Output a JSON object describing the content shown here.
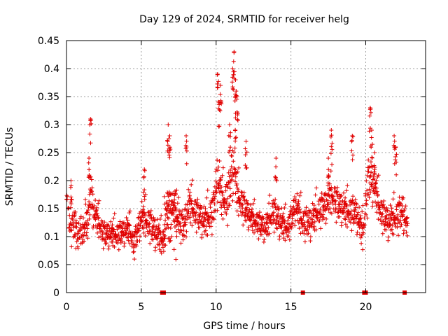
{
  "chart_data": {
    "type": "scatter",
    "title": "Day 129 of 2024, SRMTID for receiver helg",
    "xlabel": "GPS time / hours",
    "ylabel": "SRMTID / TECUs",
    "xlim": [
      0,
      24
    ],
    "ylim": [
      0,
      0.45
    ],
    "x_ticks": [
      0,
      5,
      10,
      15,
      20
    ],
    "x_tick_labels": [
      "0",
      "5",
      "10",
      "15",
      "20"
    ],
    "y_ticks": [
      0,
      0.05,
      0.1,
      0.15,
      0.2,
      0.25,
      0.3,
      0.35,
      0.4,
      0.45
    ],
    "y_tick_labels": [
      "0",
      "0.05",
      "0.1",
      "0.15",
      "0.2",
      "0.25",
      "0.3",
      "0.35",
      "0.4",
      "0.45"
    ],
    "grid": true,
    "marker": "plus",
    "series_color": "#e00000",
    "zero_markers_x": [
      6.4,
      6.5,
      15.8,
      19.9,
      20.0,
      22.6
    ],
    "profile_x": [
      0,
      0.3,
      0.8,
      1.2,
      1.5,
      1.6,
      1.8,
      2.5,
      3.5,
      4.2,
      4.5,
      5.0,
      5.5,
      6.0,
      6.5,
      6.8,
      7.2,
      7.8,
      8.2,
      8.6,
      9.2,
      9.8,
      10.1,
      10.4,
      10.8,
      11.0,
      11.2,
      11.4,
      11.8,
      12.3,
      12.8,
      13.3,
      13.8,
      14.3,
      14.8,
      15.3,
      15.8,
      16.3,
      16.8,
      17.3,
      17.7,
      18.2,
      18.8,
      19.3,
      19.8,
      20.1,
      20.3,
      20.6,
      21.0,
      21.5,
      22.0,
      22.5,
      22.8
    ],
    "profile_y": [
      0.15,
      0.13,
      0.1,
      0.11,
      0.13,
      0.18,
      0.14,
      0.1,
      0.1,
      0.11,
      0.08,
      0.13,
      0.12,
      0.1,
      0.09,
      0.15,
      0.14,
      0.11,
      0.15,
      0.14,
      0.12,
      0.14,
      0.2,
      0.16,
      0.16,
      0.2,
      0.22,
      0.17,
      0.15,
      0.13,
      0.12,
      0.11,
      0.14,
      0.12,
      0.11,
      0.15,
      0.12,
      0.12,
      0.14,
      0.15,
      0.17,
      0.15,
      0.14,
      0.14,
      0.1,
      0.18,
      0.2,
      0.18,
      0.14,
      0.12,
      0.13,
      0.14,
      0.11
    ],
    "profile_spread": [
      0.05,
      0.05,
      0.04,
      0.04,
      0.05,
      0.08,
      0.05,
      0.04,
      0.04,
      0.04,
      0.04,
      0.05,
      0.05,
      0.05,
      0.04,
      0.06,
      0.05,
      0.05,
      0.06,
      0.05,
      0.05,
      0.06,
      0.09,
      0.06,
      0.07,
      0.08,
      0.09,
      0.06,
      0.05,
      0.04,
      0.04,
      0.04,
      0.05,
      0.05,
      0.04,
      0.05,
      0.05,
      0.05,
      0.05,
      0.05,
      0.06,
      0.05,
      0.05,
      0.05,
      0.05,
      0.08,
      0.07,
      0.06,
      0.05,
      0.05,
      0.05,
      0.06,
      0.04
    ],
    "peaks": [
      {
        "x": 0.3,
        "y": 0.2
      },
      {
        "x": 1.5,
        "y": 0.24
      },
      {
        "x": 1.6,
        "y": 0.31
      },
      {
        "x": 5.2,
        "y": 0.22
      },
      {
        "x": 6.8,
        "y": 0.3
      },
      {
        "x": 6.9,
        "y": 0.28
      },
      {
        "x": 8.0,
        "y": 0.28
      },
      {
        "x": 10.1,
        "y": 0.39
      },
      {
        "x": 10.2,
        "y": 0.34
      },
      {
        "x": 10.3,
        "y": 0.37
      },
      {
        "x": 10.9,
        "y": 0.3
      },
      {
        "x": 11.1,
        "y": 0.4
      },
      {
        "x": 11.2,
        "y": 0.43
      },
      {
        "x": 11.3,
        "y": 0.38
      },
      {
        "x": 11.4,
        "y": 0.35
      },
      {
        "x": 11.3,
        "y": 0.32
      },
      {
        "x": 12.0,
        "y": 0.27
      },
      {
        "x": 14.0,
        "y": 0.24
      },
      {
        "x": 17.7,
        "y": 0.29
      },
      {
        "x": 17.5,
        "y": 0.24
      },
      {
        "x": 19.1,
        "y": 0.28
      },
      {
        "x": 20.3,
        "y": 0.33
      },
      {
        "x": 20.4,
        "y": 0.29
      },
      {
        "x": 20.6,
        "y": 0.25
      },
      {
        "x": 21.9,
        "y": 0.28
      },
      {
        "x": 22.0,
        "y": 0.26
      }
    ],
    "dense_points": [
      {
        "x": 6.35,
        "x_end": 7.5,
        "y_min": 0.05,
        "y_max": 0.27
      }
    ]
  }
}
